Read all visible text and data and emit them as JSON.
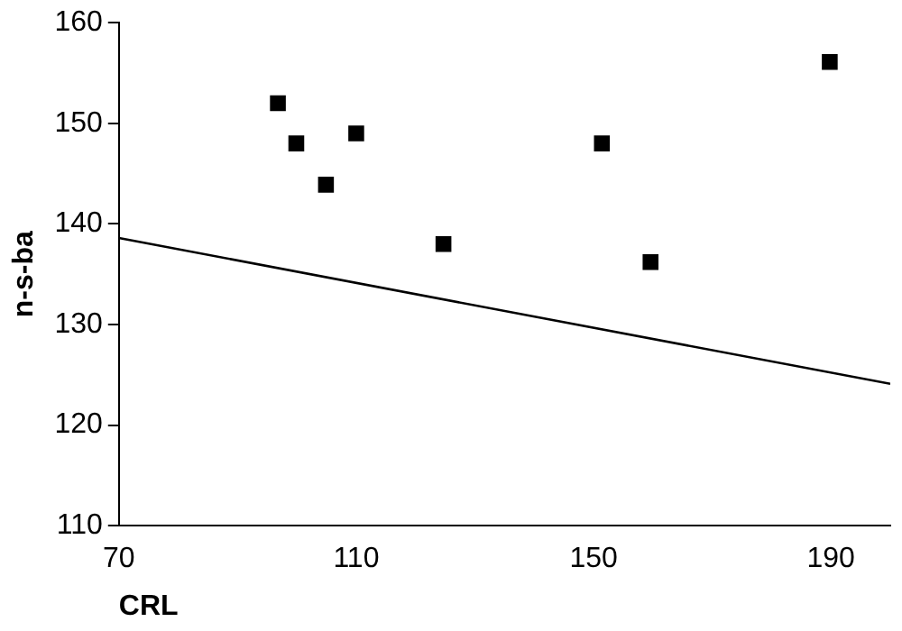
{
  "chart_data": {
    "type": "scatter",
    "xlabel": "CRL",
    "ylabel": "n-s-ba",
    "xlim": [
      70,
      200
    ],
    "xticks": [
      70,
      110,
      150,
      190
    ],
    "ylim": [
      110,
      160
    ],
    "yticks": [
      110,
      120,
      130,
      140,
      150,
      160
    ],
    "grid": false,
    "legend": false,
    "series": [
      {
        "marker": "square",
        "color": "#000000",
        "x": [
          96.8,
          99.9,
          104.9,
          110,
          124.7,
          151.4,
          159.6,
          189.8
        ],
        "values": [
          152,
          148,
          143.9,
          149,
          138,
          148,
          136.2,
          156.1
        ]
      },
      {
        "type": "line",
        "marker": "none",
        "color": "#000000",
        "x": [
          70,
          200
        ],
        "values": [
          138.6,
          124.1
        ]
      }
    ]
  }
}
